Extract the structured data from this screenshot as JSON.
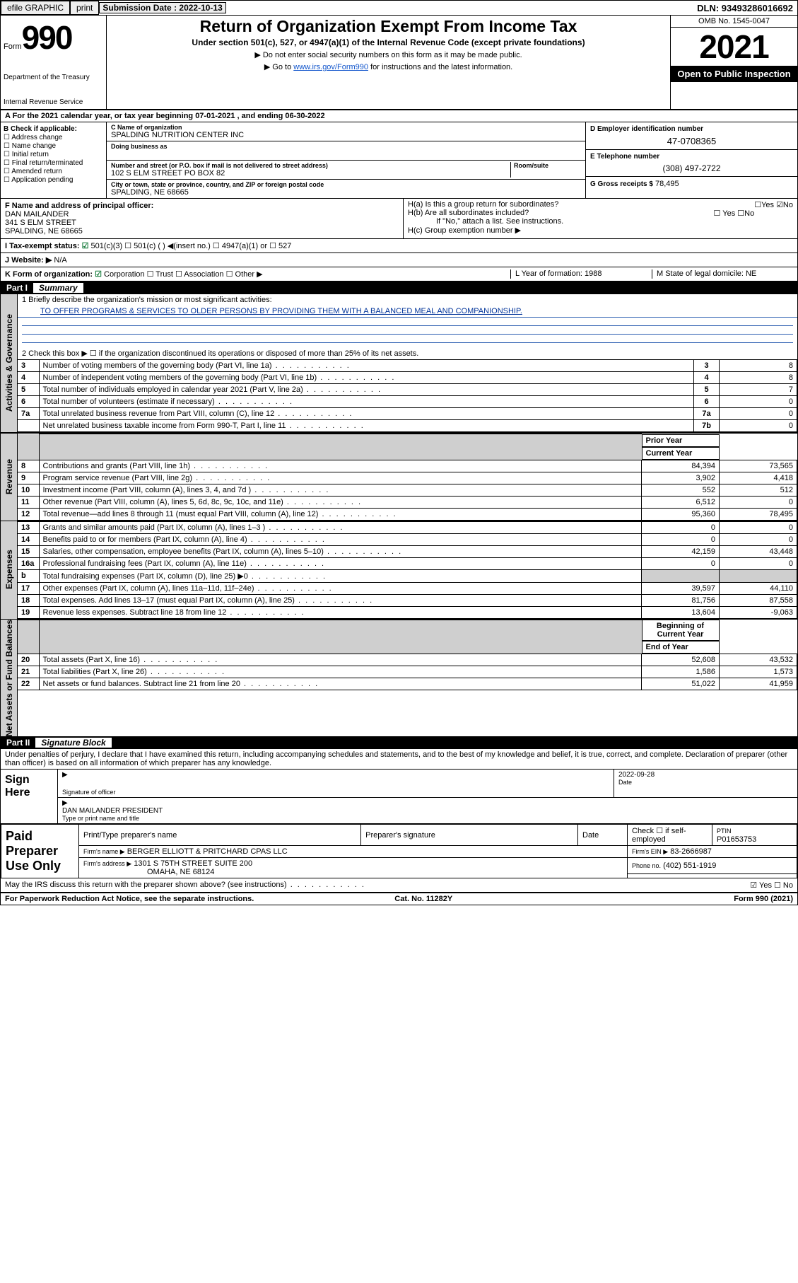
{
  "topbar": {
    "efile": "efile GRAPHIC",
    "print": "print",
    "sub_label": "Submission Date : 2022-10-13",
    "dln": "DLN: 93493286016692"
  },
  "hdr": {
    "form_word": "Form",
    "form_num": "990",
    "dept1": "Department of the Treasury",
    "dept2": "Internal Revenue Service",
    "title": "Return of Organization Exempt From Income Tax",
    "sub": "Under section 501(c), 527, or 4947(a)(1) of the Internal Revenue Code (except private foundations)",
    "note1": "▶ Do not enter social security numbers on this form as it may be made public.",
    "note2a": "▶ Go to ",
    "note2b": "www.irs.gov/Form990",
    "note2c": " for instructions and the latest information.",
    "omb": "OMB No. 1545-0047",
    "year": "2021",
    "open": "Open to Public Inspection"
  },
  "lineA": "A For the 2021 calendar year, or tax year beginning 07-01-2021   , and ending 06-30-2022",
  "B": {
    "label": "B Check if applicable:",
    "items": [
      "Address change",
      "Name change",
      "Initial return",
      "Final return/terminated",
      "Amended return",
      "Application pending"
    ]
  },
  "C": {
    "lab": "C Name of organization",
    "name": "SPALDING NUTRITION CENTER INC",
    "dba_lab": "Doing business as",
    "addr_lab": "Number and street (or P.O. box if mail is not delivered to street address)",
    "addr": "102 S ELM STREET PO BOX 82",
    "room_lab": "Room/suite",
    "city_lab": "City or town, state or province, country, and ZIP or foreign postal code",
    "city": "SPALDING, NE  68665"
  },
  "D": {
    "lab": "D Employer identification number",
    "val": "47-0708365"
  },
  "E": {
    "lab": "E Telephone number",
    "val": "(308) 497-2722"
  },
  "G": {
    "lab": "G Gross receipts $",
    "val": "78,495"
  },
  "F": {
    "lab": "F  Name and address of principal officer:",
    "name": "DAN MAILANDER",
    "addr1": "341 S ELM STREET",
    "addr2": "SPALDING, NE  68665"
  },
  "H": {
    "a": "H(a)  Is this a group return for subordinates?",
    "a_yn": "☐Yes ☑No",
    "b": "H(b)  Are all subordinates included?",
    "b_yn": "☐ Yes  ☐No",
    "b_note": "If \"No,\" attach a list. See instructions.",
    "c": "H(c)  Group exemption number ▶"
  },
  "I": {
    "lab": "I    Tax-exempt status:",
    "opts": "501(c)(3)   ☐  501(c) (  ) ◀(insert no.)    ☐  4947(a)(1) or  ☐  527"
  },
  "J": {
    "lab": "J    Website: ▶",
    "val": "N/A"
  },
  "K": {
    "lab": "K Form of organization:",
    "opts": " Corporation  ☐ Trust  ☐ Association  ☐ Other ▶"
  },
  "L": {
    "lab": "L Year of formation: 1988"
  },
  "M": {
    "lab": "M State of legal domicile: NE"
  },
  "part1": {
    "title": "Part I",
    "name": "Summary",
    "q1": "1   Briefly describe the organization's mission or most significant activities:",
    "mission": "TO OFFER PROGRAMS & SERVICES TO OLDER PERSONS BY PROVIDING THEM WITH A BALANCED MEAL AND COMPANIONSHIP.",
    "q2": "2   Check this box ▶ ☐  if the organization discontinued its operations or disposed of more than 25% of its net assets."
  },
  "govrows": [
    {
      "n": "3",
      "d": "Number of voting members of the governing body (Part VI, line 1a)",
      "b": "3",
      "v": "8"
    },
    {
      "n": "4",
      "d": "Number of independent voting members of the governing body (Part VI, line 1b)",
      "b": "4",
      "v": "8"
    },
    {
      "n": "5",
      "d": "Total number of individuals employed in calendar year 2021 (Part V, line 2a)",
      "b": "5",
      "v": "7"
    },
    {
      "n": "6",
      "d": "Total number of volunteers (estimate if necessary)",
      "b": "6",
      "v": "0"
    },
    {
      "n": "7a",
      "d": "Total unrelated business revenue from Part VIII, column (C), line 12",
      "b": "7a",
      "v": "0"
    },
    {
      "n": "",
      "d": "Net unrelated business taxable income from Form 990-T, Part I, line 11",
      "b": "7b",
      "v": "0"
    }
  ],
  "colhdr": {
    "prior": "Prior Year",
    "curr": "Current Year"
  },
  "revrows": [
    {
      "n": "8",
      "d": "Contributions and grants (Part VIII, line 1h)",
      "p": "84,394",
      "c": "73,565"
    },
    {
      "n": "9",
      "d": "Program service revenue (Part VIII, line 2g)",
      "p": "3,902",
      "c": "4,418"
    },
    {
      "n": "10",
      "d": "Investment income (Part VIII, column (A), lines 3, 4, and 7d )",
      "p": "552",
      "c": "512"
    },
    {
      "n": "11",
      "d": "Other revenue (Part VIII, column (A), lines 5, 6d, 8c, 9c, 10c, and 11e)",
      "p": "6,512",
      "c": "0"
    },
    {
      "n": "12",
      "d": "Total revenue—add lines 8 through 11 (must equal Part VIII, column (A), line 12)",
      "p": "95,360",
      "c": "78,495"
    }
  ],
  "exprows": [
    {
      "n": "13",
      "d": "Grants and similar amounts paid (Part IX, column (A), lines 1–3 )",
      "p": "0",
      "c": "0"
    },
    {
      "n": "14",
      "d": "Benefits paid to or for members (Part IX, column (A), line 4)",
      "p": "0",
      "c": "0"
    },
    {
      "n": "15",
      "d": "Salaries, other compensation, employee benefits (Part IX, column (A), lines 5–10)",
      "p": "42,159",
      "c": "43,448"
    },
    {
      "n": "16a",
      "d": "Professional fundraising fees (Part IX, column (A), line 11e)",
      "p": "0",
      "c": "0"
    },
    {
      "n": "b",
      "d": "Total fundraising expenses (Part IX, column (D), line 25) ▶0",
      "p": "grey",
      "c": "grey"
    },
    {
      "n": "17",
      "d": "Other expenses (Part IX, column (A), lines 11a–11d, 11f–24e)",
      "p": "39,597",
      "c": "44,110"
    },
    {
      "n": "18",
      "d": "Total expenses. Add lines 13–17 (must equal Part IX, column (A), line 25)",
      "p": "81,756",
      "c": "87,558"
    },
    {
      "n": "19",
      "d": "Revenue less expenses. Subtract line 18 from line 12",
      "p": "13,604",
      "c": "-9,063"
    }
  ],
  "nahdr": {
    "beg": "Beginning of Current Year",
    "end": "End of Year"
  },
  "narows": [
    {
      "n": "20",
      "d": "Total assets (Part X, line 16)",
      "p": "52,608",
      "c": "43,532"
    },
    {
      "n": "21",
      "d": "Total liabilities (Part X, line 26)",
      "p": "1,586",
      "c": "1,573"
    },
    {
      "n": "22",
      "d": "Net assets or fund balances. Subtract line 21 from line 20",
      "p": "51,022",
      "c": "41,959"
    }
  ],
  "part2": {
    "title": "Part II",
    "name": "Signature Block"
  },
  "decl": "Under penalties of perjury, I declare that I have examined this return, including accompanying schedules and statements, and to the best of my knowledge and belief, it is true, correct, and complete. Declaration of preparer (other than officer) is based on all information of which preparer has any knowledge.",
  "sign": {
    "here": "Sign Here",
    "sig_lab": "Signature of officer",
    "date": "2022-09-28",
    "name": "DAN MAILANDER  PRESIDENT",
    "name_lab": "Type or print name and title"
  },
  "paid": {
    "title": "Paid Preparer Use Only",
    "h1": "Print/Type preparer's name",
    "h2": "Preparer's signature",
    "h3": "Date",
    "h4": "Check ☐ if self-employed",
    "h5": "PTIN",
    "ptin": "P01653753",
    "firm_lab": "Firm's name    ▶",
    "firm": "BERGER ELLIOTT & PRITCHARD CPAS LLC",
    "ein_lab": "Firm's EIN ▶",
    "ein": "83-2666987",
    "addr_lab": "Firm's address ▶",
    "addr": "1301 S 75TH STREET SUITE 200",
    "addr2": "OMAHA, NE  68124",
    "ph_lab": "Phone no.",
    "ph": "(402) 551-1919"
  },
  "may": "May the IRS discuss this return with the preparer shown above? (see instructions)",
  "may_yn": "☑ Yes  ☐ No",
  "foot": {
    "l": "For Paperwork Reduction Act Notice, see the separate instructions.",
    "m": "Cat. No. 11282Y",
    "r": "Form 990 (2021)"
  },
  "vtabs": {
    "gov": "Activities & Governance",
    "rev": "Revenue",
    "exp": "Expenses",
    "na": "Net Assets or Fund Balances"
  }
}
